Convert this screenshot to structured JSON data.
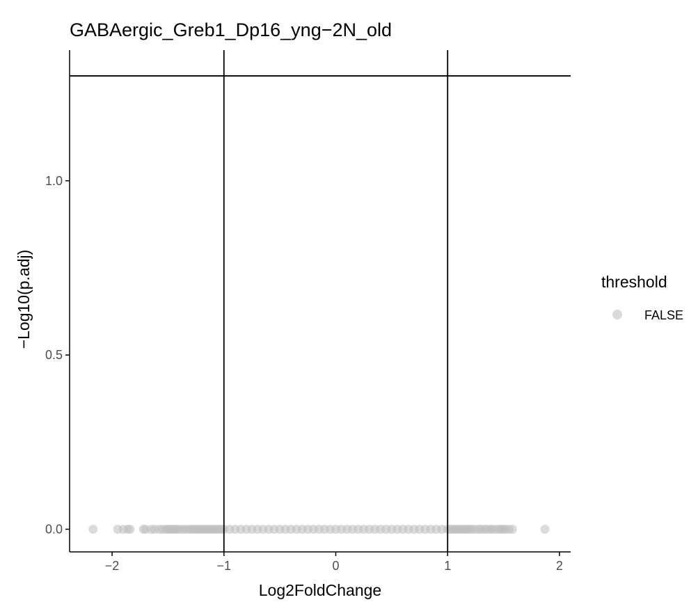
{
  "colors": {
    "point": "#bebebe",
    "legend_key": "#d9d9d9",
    "axis": "#000000",
    "reference_lines": "#000000",
    "tick_text": "#4d4d4d",
    "background": "#ffffff"
  },
  "chart_data": {
    "type": "scatter",
    "title": "GABAergic_Greb1_Dp16_yng−2N_old",
    "xlabel": "Log2FoldChange",
    "ylabel": "−Log10(p.adj)",
    "xlim": [
      -2.38,
      2.1
    ],
    "ylim": [
      -0.065,
      1.375
    ],
    "xticks": [
      -2,
      -1,
      0,
      1,
      2
    ],
    "xtick_labels": [
      "−2",
      "−1",
      "0",
      "1",
      "2"
    ],
    "yticks": [
      0.0,
      0.5,
      1.0
    ],
    "ytick_labels": [
      "0.0",
      "0.5",
      "1.0"
    ],
    "reference_lines": {
      "vertical_x": [
        -1,
        1
      ],
      "horizontal_y": [
        1.301
      ]
    },
    "grid": false,
    "legend": {
      "title": "threshold",
      "position": "right",
      "entries": [
        {
          "label": "FALSE",
          "color": "#d9d9d9"
        }
      ]
    },
    "series": [
      {
        "name": "FALSE",
        "x": [
          -2.17,
          -1.95,
          -1.9,
          -1.86,
          -1.84,
          -1.72,
          -1.7,
          -1.65,
          -1.62,
          -1.58,
          -1.55,
          -1.52,
          -1.5,
          -1.48,
          -1.46,
          -1.44,
          -1.42,
          -1.4,
          -1.37,
          -1.35,
          -1.32,
          -1.3,
          -1.28,
          -1.26,
          -1.24,
          -1.22,
          -1.2,
          -1.18,
          -1.16,
          -1.14,
          -1.12,
          -1.1,
          -1.08,
          -1.06,
          -1.04,
          -1.02,
          -1.0,
          -0.95,
          -0.9,
          -0.85,
          -0.8,
          -0.75,
          -0.7,
          -0.65,
          -0.6,
          -0.55,
          -0.5,
          -0.45,
          -0.4,
          -0.35,
          -0.3,
          -0.25,
          -0.2,
          -0.15,
          -0.1,
          -0.05,
          0.0,
          0.05,
          0.1,
          0.15,
          0.2,
          0.25,
          0.3,
          0.35,
          0.4,
          0.45,
          0.5,
          0.55,
          0.6,
          0.65,
          0.7,
          0.75,
          0.8,
          0.85,
          0.9,
          0.95,
          1.0,
          1.02,
          1.04,
          1.06,
          1.08,
          1.1,
          1.12,
          1.14,
          1.16,
          1.18,
          1.2,
          1.22,
          1.25,
          1.28,
          1.3,
          1.33,
          1.35,
          1.38,
          1.4,
          1.43,
          1.46,
          1.48,
          1.5,
          1.52,
          1.55,
          1.58,
          1.87
        ],
        "y": [
          0,
          0,
          0,
          0,
          0,
          0,
          0,
          0,
          0,
          0,
          0,
          0,
          0,
          0,
          0,
          0,
          0,
          0,
          0,
          0,
          0,
          0,
          0,
          0,
          0,
          0,
          0,
          0,
          0,
          0,
          0,
          0,
          0,
          0,
          0,
          0,
          0,
          0,
          0,
          0,
          0,
          0,
          0,
          0,
          0,
          0,
          0,
          0,
          0,
          0,
          0,
          0,
          0,
          0,
          0,
          0,
          0,
          0,
          0,
          0,
          0,
          0,
          0,
          0,
          0,
          0,
          0,
          0,
          0,
          0,
          0,
          0,
          0,
          0,
          0,
          0,
          0,
          0,
          0,
          0,
          0,
          0,
          0,
          0,
          0,
          0,
          0,
          0,
          0,
          0,
          0,
          0,
          0,
          0,
          0,
          0,
          0,
          0,
          0,
          0,
          0,
          0,
          0
        ]
      }
    ]
  }
}
